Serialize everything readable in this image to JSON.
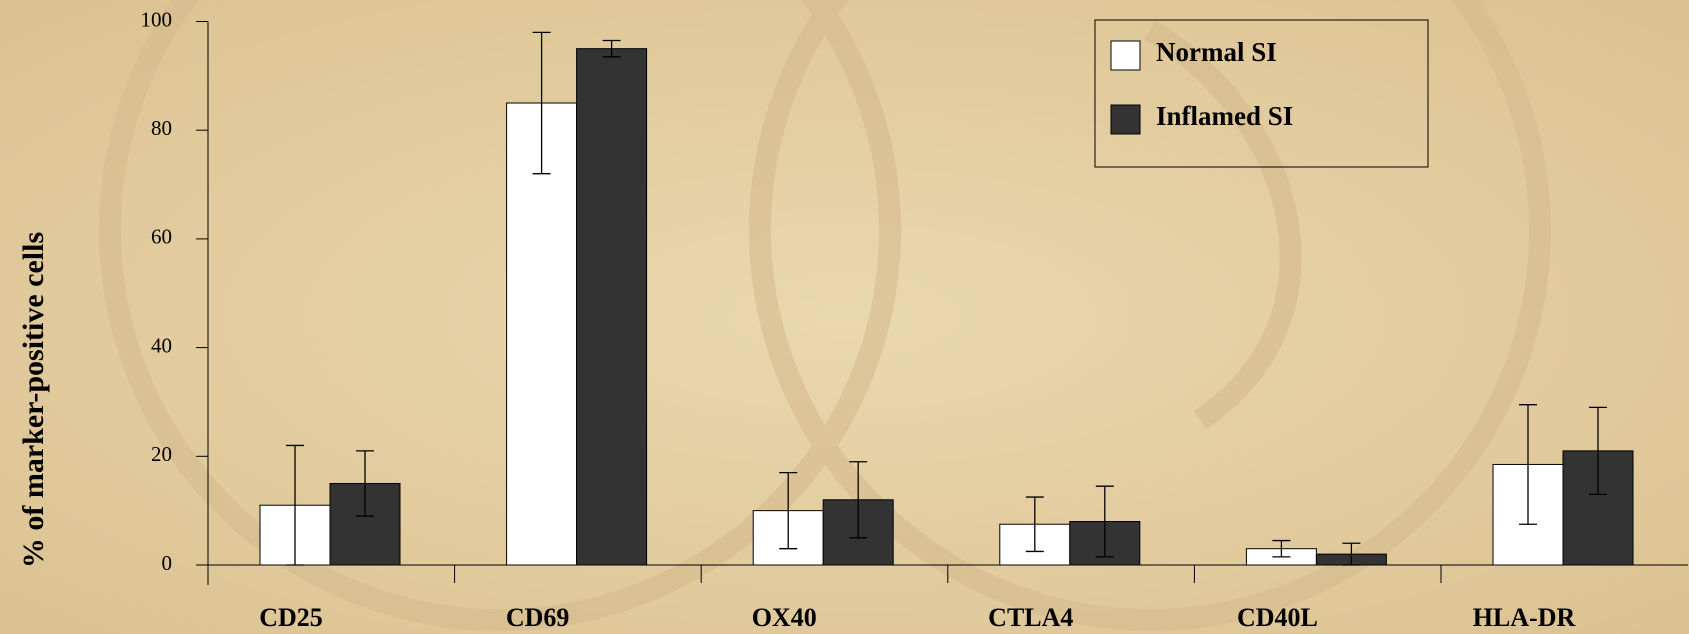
{
  "chart_data": {
    "type": "bar",
    "y_label": "% of marker-positive cells",
    "categories": [
      "CD25",
      "CD69",
      "OX40",
      "CTLA4",
      "CD40L",
      "HLA-DR"
    ],
    "series": [
      {
        "name": "Normal SI",
        "color": "#ffffff",
        "values": [
          11,
          85,
          10,
          7.5,
          3,
          18.5
        ],
        "errors": [
          11,
          13,
          7,
          5,
          1.5,
          11
        ]
      },
      {
        "name": "Inflamed SI",
        "color": "#333333",
        "values": [
          15,
          95,
          12,
          8,
          2,
          21
        ],
        "errors": [
          6,
          1.5,
          7,
          6.5,
          2,
          8
        ]
      }
    ],
    "ylim": [
      0,
      100
    ],
    "yticks": [
      0,
      20,
      40,
      60,
      80,
      100
    ],
    "legend": "upper right"
  }
}
